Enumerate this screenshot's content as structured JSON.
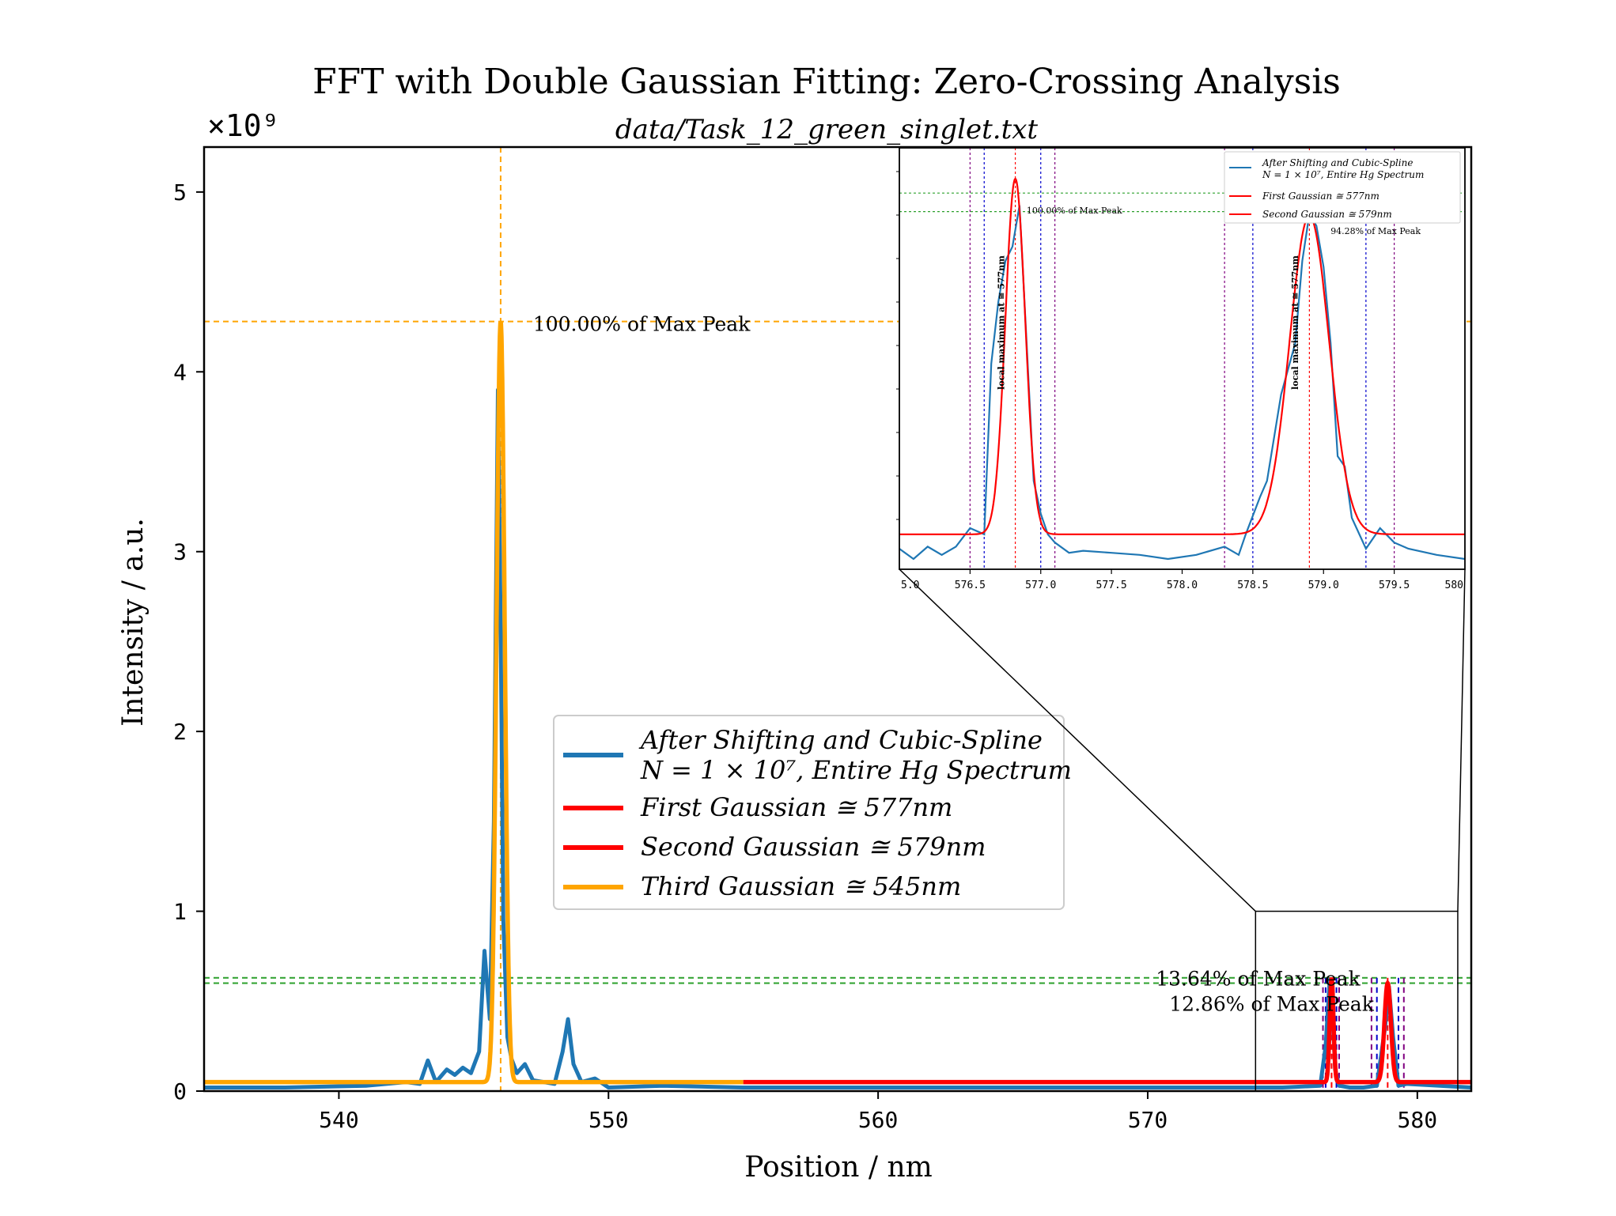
{
  "chart_data": {
    "type": "line",
    "title": "FFT with Double Gaussian Fitting: Zero-Crossing Analysis",
    "subtitle": "data/Task_12_green_singlet.txt",
    "xlabel": "Position / nm",
    "ylabel": "Intensity / a.u.",
    "y_multiplier": "×10⁹",
    "xlim": [
      535,
      582
    ],
    "ylim": [
      0,
      5.25
    ],
    "x_ticks": [
      540,
      550,
      560,
      570,
      580
    ],
    "y_ticks": [
      0,
      1,
      2,
      3,
      4,
      5
    ],
    "grid": false,
    "legend_position": "center-right",
    "colors": {
      "spectrum": "#1f77b4",
      "first_gaussian": "#ff0000",
      "second_gaussian": "#ff0000",
      "third_gaussian": "#ffa500",
      "max_line": "#ffa500",
      "percent_lines": "#2ca02c",
      "zero_crossing_a": "#0000cc",
      "zero_crossing_b": "#800080"
    },
    "series": [
      {
        "name": "After Shifting and Cubic-Spline",
        "name_line2": "N = 1 × 10⁷, Entire Hg Spectrum",
        "role": "spectrum",
        "x": [
          535,
          538,
          541,
          542.5,
          543,
          543.3,
          543.6,
          544,
          544.3,
          544.6,
          544.9,
          545.2,
          545.4,
          545.6,
          545.75,
          545.9,
          546.0,
          546.1,
          546.25,
          546.4,
          546.6,
          546.9,
          547.2,
          547.6,
          548.0,
          548.3,
          548.5,
          548.7,
          549.0,
          549.5,
          550,
          552,
          555,
          560,
          565,
          570,
          575,
          576.4,
          576.6,
          576.75,
          576.85,
          576.95,
          577.1,
          577.5,
          578,
          578.5,
          578.8,
          578.95,
          579.1,
          579.3,
          579.6,
          582
        ],
        "values": [
          0.02,
          0.02,
          0.03,
          0.05,
          0.04,
          0.17,
          0.05,
          0.12,
          0.09,
          0.13,
          0.1,
          0.22,
          0.78,
          0.4,
          1.5,
          3.9,
          2.6,
          0.95,
          0.3,
          0.18,
          0.1,
          0.15,
          0.06,
          0.05,
          0.04,
          0.22,
          0.4,
          0.15,
          0.05,
          0.07,
          0.02,
          0.03,
          0.02,
          0.02,
          0.02,
          0.02,
          0.02,
          0.03,
          0.25,
          0.62,
          0.45,
          0.12,
          0.03,
          0.02,
          0.02,
          0.03,
          0.35,
          0.58,
          0.3,
          0.03,
          0.04,
          0.02
        ]
      },
      {
        "name": "First Gaussian ≅ 577nm",
        "role": "first_gaussian",
        "center": 576.82,
        "amplitude": 0.58,
        "sigma": 0.07,
        "baseline": 0.05,
        "x_range": [
          555,
          582
        ]
      },
      {
        "name": "Second Gaussian ≅ 579nm",
        "role": "second_gaussian",
        "center": 578.9,
        "amplitude": 0.55,
        "sigma": 0.12,
        "baseline": 0.05,
        "x_range": [
          555,
          582
        ]
      },
      {
        "name": "Third Gaussian ≅ 545nm",
        "role": "third_gaussian",
        "center": 546.0,
        "amplitude": 4.23,
        "sigma": 0.15,
        "baseline": 0.05,
        "x_range": [
          535,
          555
        ]
      }
    ],
    "reference_lines": {
      "max_peak_y": 4.28,
      "max_peak_x": 546.0,
      "green_hlines": [
        0.63,
        0.6
      ],
      "zero_crossings_a": [
        576.6,
        577.0,
        578.5,
        579.3
      ],
      "zero_crossings_b": [
        576.5,
        577.1,
        578.3,
        579.5
      ]
    },
    "annotations": [
      {
        "text": "100.00% of Max Peak",
        "x": 547.2,
        "y": 4.28
      },
      {
        "text": "13.64% of Max Peak",
        "x": 570.3,
        "y": 0.63
      },
      {
        "text": "12.86% of Max Peak",
        "x": 570.8,
        "y": 0.49
      }
    ],
    "inset": {
      "xlim": [
        576.0,
        580.0
      ],
      "x_ticks": [
        576.5,
        577.0,
        577.5,
        578.0,
        578.5,
        579.0,
        579.5
      ],
      "x_tick_labels": [
        "576.5",
        "577.0",
        "577.5",
        "578.0",
        "578.5",
        "579.0",
        "579.5"
      ],
      "left_edge_label": "5.0",
      "right_edge_label": "580",
      "zoom_box_xlim": [
        574.0,
        581.5
      ],
      "zoom_box_ylim": [
        0,
        1.0
      ],
      "spectrum_x": [
        576.0,
        576.1,
        576.2,
        576.3,
        576.4,
        576.5,
        576.6,
        576.65,
        576.7,
        576.75,
        576.8,
        576.85,
        576.9,
        576.95,
        577.0,
        577.05,
        577.1,
        577.2,
        577.3,
        577.5,
        577.7,
        577.9,
        578.1,
        578.3,
        578.4,
        578.45,
        578.55,
        578.6,
        578.7,
        578.8,
        578.85,
        578.9,
        578.95,
        579.0,
        579.05,
        579.1,
        579.15,
        579.2,
        579.3,
        579.4,
        579.5,
        579.6,
        579.8,
        580.0
      ],
      "spectrum_values": [
        0.05,
        0.0,
        0.06,
        0.02,
        0.06,
        0.15,
        0.12,
        0.95,
        1.25,
        1.45,
        1.52,
        1.72,
        1.05,
        0.38,
        0.22,
        0.12,
        0.08,
        0.03,
        0.04,
        0.03,
        0.02,
        0.0,
        0.02,
        0.06,
        0.02,
        0.12,
        0.3,
        0.38,
        0.8,
        1.05,
        1.45,
        1.68,
        1.62,
        1.42,
        1.05,
        0.5,
        0.45,
        0.2,
        0.05,
        0.15,
        0.08,
        0.05,
        0.02,
        0.0
      ],
      "label_first": "100.00% of Max Peak",
      "label_second": "94.28% of Max Peak",
      "vertical_label_first": "local maximum at ≅ 577nm",
      "vertical_label_second": "local maximum at ≅ 577nm",
      "legend": [
        "After Shifting and Cubic-Spline",
        "N = 1 × 10⁷, Entire Hg Spectrum",
        "First Gaussian ≅ 577nm",
        "Second Gaussian ≅ 579nm"
      ]
    }
  }
}
